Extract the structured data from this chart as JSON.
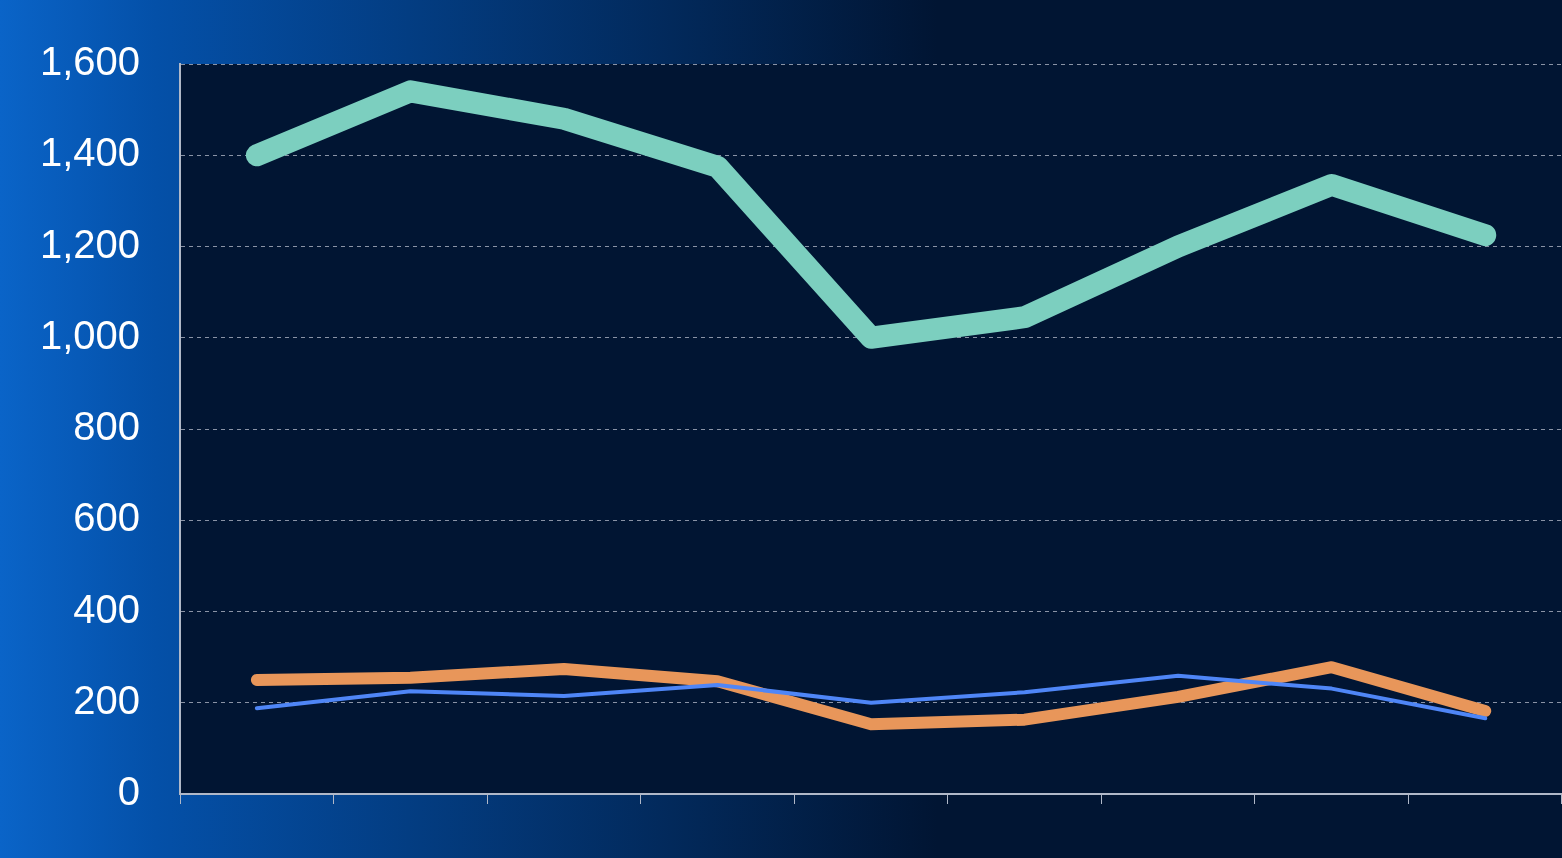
{
  "chart_data": {
    "type": "line",
    "categories": [
      null,
      null,
      null,
      null,
      null,
      null,
      null,
      null,
      null
    ],
    "series": [
      {
        "color": "#7ccfbf",
        "values": [
          1400,
          1540,
          1480,
          1375,
          1000,
          1045,
          1200,
          1335,
          1225
        ]
      },
      {
        "color": "#4f86f7",
        "values": [
          188,
          225,
          215,
          239,
          200,
          223,
          259,
          231,
          166
        ]
      },
      {
        "color": "#e8965a",
        "values": [
          250,
          255,
          274,
          247,
          153,
          163,
          213,
          278,
          182
        ]
      }
    ],
    "ylim": [
      0,
      1600
    ],
    "yticks": [
      0,
      200,
      400,
      600,
      800,
      {
        "value": 1000,
        "label": "1,000"
      },
      {
        "value": 1200,
        "label": "1,200"
      },
      {
        "value": 1400,
        "label": "1,400"
      },
      {
        "value": 1600,
        "label": "1,600"
      }
    ],
    "grid": "y",
    "legend": false,
    "marker": "none",
    "line_style": "solid",
    "tick_labels": "y"
  }
}
